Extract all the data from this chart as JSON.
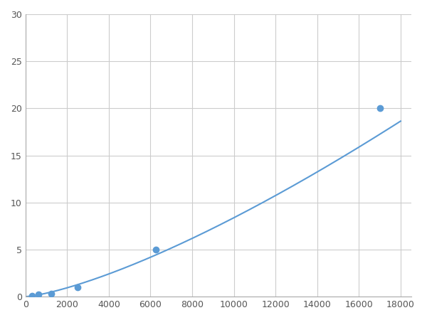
{
  "marker_x": [
    313,
    625,
    1250,
    2500,
    6250,
    17000
  ],
  "marker_y": [
    0.1,
    0.2,
    0.35,
    1.0,
    5.0,
    20.0
  ],
  "line_color": "#5b9bd5",
  "marker_color": "#5b9bd5",
  "marker_size": 6,
  "xlim": [
    0,
    18500
  ],
  "ylim": [
    0,
    30
  ],
  "xticks": [
    0,
    2000,
    4000,
    6000,
    8000,
    10000,
    12000,
    14000,
    16000,
    18000
  ],
  "yticks": [
    0,
    5,
    10,
    15,
    20,
    25,
    30
  ],
  "grid_color": "#cccccc",
  "background_color": "#ffffff",
  "linewidth": 1.5
}
